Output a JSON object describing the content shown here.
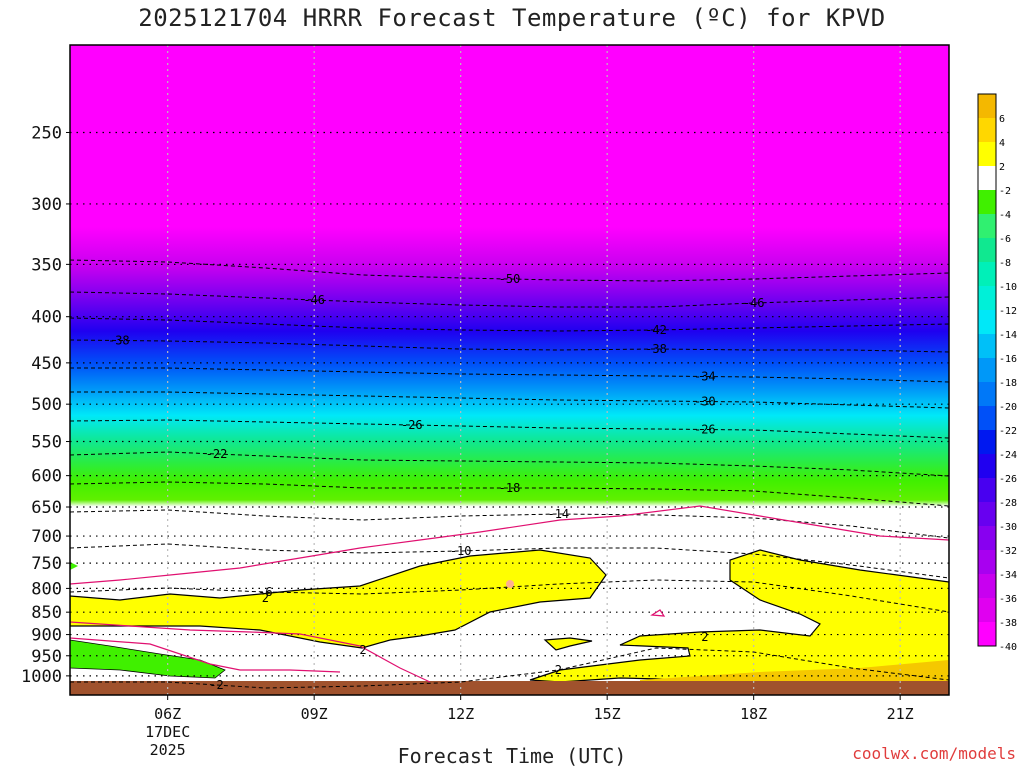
{
  "title": "2025121704 HRRR Forecast Temperature (ºC) for KPVD",
  "credit": "coolwx.com/models",
  "chart_data": {
    "type": "heatmap",
    "title": "2025121704 HRRR Forecast Temperature (ºC) for KPVD",
    "xlabel": "Forecast Time (UTC)",
    "ylabel": "",
    "y_scale": "log-pressure (hPa), inverted",
    "x_range_hours_utc": [
      4,
      22
    ],
    "y_range_hpa": [
      200,
      1050
    ],
    "x_ticks": [
      {
        "label": "06Z",
        "sub1": "17DEC",
        "sub2": "2025",
        "hour": 6
      },
      {
        "label": "09Z",
        "hour": 9
      },
      {
        "label": "12Z",
        "hour": 12
      },
      {
        "label": "15Z",
        "hour": 15
      },
      {
        "label": "18Z",
        "hour": 18
      },
      {
        "label": "21Z",
        "hour": 21
      }
    ],
    "y_ticks": [
      250,
      300,
      350,
      400,
      450,
      500,
      550,
      600,
      650,
      700,
      750,
      800,
      850,
      900,
      950,
      1000
    ],
    "dotted_levels_hpa": [
      250,
      300,
      350,
      400,
      450,
      500,
      550,
      600,
      650,
      700,
      750,
      800,
      850,
      900,
      950,
      1000
    ],
    "colorbar": {
      "labels": [
        "6",
        "4",
        "2",
        "-2",
        "-4",
        "-6",
        "-8",
        "-10",
        "-12",
        "-14",
        "-16",
        "-18",
        "-20",
        "-22",
        "-24",
        "-26",
        "-28",
        "-30",
        "-32",
        "-34",
        "-36",
        "-38",
        "-40"
      ],
      "colors": [
        "#f4b800",
        "#ffd700",
        "#ffff00",
        "#ffffff",
        "#40f000",
        "#30f070",
        "#10e890",
        "#00f0b8",
        "#00f0d8",
        "#00e8f8",
        "#00c0f8",
        "#0098f8",
        "#0078f8",
        "#0050f8",
        "#0018f0",
        "#2000f0",
        "#4800f0",
        "#6800f0",
        "#8800f0",
        "#a800f0",
        "#c800f0",
        "#e000f0",
        "#ff00ff"
      ]
    },
    "contours": [
      {
        "value": -50,
        "label": "-50",
        "label_hour": 13.0,
        "points": [
          [
            4,
            260
          ],
          [
            6,
            262
          ],
          [
            8,
            268
          ],
          [
            10,
            275
          ],
          [
            12,
            278
          ],
          [
            14,
            280
          ],
          [
            16,
            281
          ],
          [
            18,
            279
          ],
          [
            20,
            276
          ],
          [
            22,
            273
          ]
        ]
      },
      {
        "value": -46,
        "label": "-46",
        "label_hour": 9.0,
        "points": [
          [
            4,
            292
          ],
          [
            6,
            294
          ],
          [
            8,
            298
          ],
          [
            10,
            302
          ],
          [
            12,
            305
          ],
          [
            14,
            307
          ],
          [
            16,
            307
          ],
          [
            18,
            303
          ],
          [
            20,
            300
          ],
          [
            22,
            297
          ]
        ]
      },
      {
        "value": -46,
        "label": "-46",
        "label_hour": 18.0,
        "points": []
      },
      {
        "value": -42,
        "label": "-42",
        "label_hour": 16.0,
        "points": [
          [
            4,
            318
          ],
          [
            6,
            320
          ],
          [
            8,
            324
          ],
          [
            10,
            328
          ],
          [
            12,
            330
          ],
          [
            14,
            331
          ],
          [
            16,
            330
          ],
          [
            18,
            328
          ],
          [
            20,
            326
          ],
          [
            22,
            324
          ]
        ]
      },
      {
        "value": -38,
        "label": "-38",
        "label_hour": 5.0,
        "points": [
          [
            4,
            340
          ],
          [
            6,
            341
          ],
          [
            8,
            343
          ],
          [
            10,
            346
          ],
          [
            12,
            349
          ],
          [
            14,
            350
          ],
          [
            16,
            349
          ],
          [
            18,
            350
          ],
          [
            20,
            350
          ],
          [
            22,
            352
          ]
        ]
      },
      {
        "value": -38,
        "label": "-38",
        "label_hour": 16.0,
        "points": []
      },
      {
        "value": -34,
        "label": "-34",
        "label_hour": 17.0,
        "points": [
          [
            4,
            368
          ],
          [
            6,
            368
          ],
          [
            8,
            370
          ],
          [
            10,
            372
          ],
          [
            12,
            374
          ],
          [
            14,
            375
          ],
          [
            16,
            376
          ],
          [
            18,
            377
          ],
          [
            20,
            379
          ],
          [
            22,
            382
          ]
        ]
      },
      {
        "value": -30,
        "label": "-30",
        "label_hour": 17.0,
        "points": [
          [
            4,
            392
          ],
          [
            6,
            392
          ],
          [
            8,
            394
          ],
          [
            10,
            396
          ],
          [
            12,
            398
          ],
          [
            14,
            400
          ],
          [
            16,
            401
          ],
          [
            18,
            402
          ],
          [
            20,
            405
          ],
          [
            22,
            408
          ]
        ]
      },
      {
        "value": -26,
        "label": "-26",
        "label_hour": 11.0,
        "points": [
          [
            4,
            421
          ],
          [
            6,
            420
          ],
          [
            8,
            422
          ],
          [
            10,
            424
          ],
          [
            12,
            426
          ],
          [
            14,
            428
          ],
          [
            16,
            429
          ],
          [
            18,
            430
          ],
          [
            20,
            434
          ],
          [
            22,
            438
          ]
        ]
      },
      {
        "value": -26,
        "label": "-26",
        "label_hour": 17.0,
        "points": []
      },
      {
        "value": -22,
        "label": "-22",
        "label_hour": 7.0,
        "points": [
          [
            4,
            455
          ],
          [
            6,
            452
          ],
          [
            8,
            456
          ],
          [
            10,
            460
          ],
          [
            12,
            461
          ],
          [
            14,
            462
          ],
          [
            16,
            463
          ],
          [
            18,
            466
          ],
          [
            20,
            470
          ],
          [
            22,
            476
          ]
        ]
      },
      {
        "value": -18,
        "label": "-18",
        "label_hour": 13.0,
        "points": [
          [
            4,
            484
          ],
          [
            6,
            482
          ],
          [
            8,
            484
          ],
          [
            10,
            488
          ],
          [
            12,
            488
          ],
          [
            14,
            488
          ],
          [
            16,
            489
          ],
          [
            18,
            491
          ],
          [
            20,
            498
          ],
          [
            22,
            506
          ]
        ]
      },
      {
        "value": -14,
        "label": "-14",
        "label_hour": 14.0,
        "points": [
          [
            4,
            512
          ],
          [
            6,
            510
          ],
          [
            8,
            516
          ],
          [
            10,
            520
          ],
          [
            12,
            516
          ],
          [
            14,
            514
          ],
          [
            16,
            515
          ],
          [
            18,
            518
          ],
          [
            20,
            526
          ],
          [
            22,
            538
          ]
        ]
      },
      {
        "value": -10,
        "label": "-10",
        "label_hour": 12.0,
        "points": [
          [
            4,
            548
          ],
          [
            6,
            544
          ],
          [
            8,
            550
          ],
          [
            10,
            553
          ],
          [
            12,
            551
          ],
          [
            14,
            548
          ],
          [
            16,
            548
          ],
          [
            18,
            554
          ],
          [
            20,
            565
          ],
          [
            22,
            578
          ]
        ]
      },
      {
        "value": -6,
        "label": "-6",
        "label_hour": 8.0,
        "points": [
          [
            4,
            592
          ],
          [
            6,
            588
          ],
          [
            8,
            592
          ],
          [
            10,
            594
          ],
          [
            12,
            590
          ],
          [
            14,
            584
          ],
          [
            16,
            580
          ],
          [
            18,
            582
          ],
          [
            20,
            596
          ],
          [
            22,
            612
          ]
        ]
      },
      {
        "value": -2,
        "label": "-2",
        "label_hour": 7.0,
        "points": [
          [
            4,
            682
          ],
          [
            6,
            682
          ],
          [
            8,
            688
          ],
          [
            10,
            686
          ],
          [
            12,
            682
          ],
          [
            14,
            670
          ],
          [
            16,
            648
          ],
          [
            18,
            652
          ],
          [
            20,
            668
          ],
          [
            22,
            680
          ]
        ]
      },
      {
        "value": 2,
        "label": "2",
        "label_hour": 14.0,
        "points": []
      }
    ],
    "regions": [
      {
        "label": "2",
        "label_hour": 8.0,
        "fill": "#ffff00"
      },
      {
        "label": "2",
        "label_hour": 10.0,
        "fill": "#ffff00"
      },
      {
        "label": "2",
        "label_hour": 17.0,
        "fill": "#ffff00"
      }
    ]
  }
}
